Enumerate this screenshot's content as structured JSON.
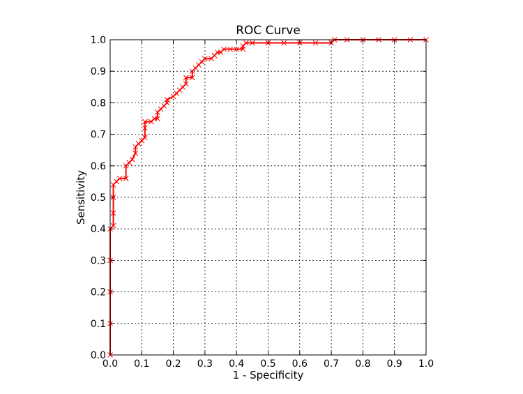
{
  "chart_data": {
    "type": "line",
    "title": "ROC Curve",
    "xlabel": "1 - Specificity",
    "ylabel": "Sensitivity",
    "xlim": [
      0.0,
      1.0
    ],
    "ylim": [
      0.0,
      1.0
    ],
    "xticks": [
      "0.0",
      "0.1",
      "0.2",
      "0.3",
      "0.4",
      "0.5",
      "0.6",
      "0.7",
      "0.8",
      "0.9",
      "1.0"
    ],
    "yticks": [
      "0.0",
      "0.1",
      "0.2",
      "0.3",
      "0.4",
      "0.5",
      "0.6",
      "0.7",
      "0.8",
      "0.9",
      "1.0"
    ],
    "grid": true,
    "legend": "none",
    "line_color": "#ff0000",
    "marker": "x",
    "series": [
      {
        "values": [
          [
            0.0,
            0.0
          ],
          [
            0.0,
            0.1
          ],
          [
            0.0,
            0.2
          ],
          [
            0.0,
            0.3
          ],
          [
            0.0,
            0.4
          ],
          [
            0.01,
            0.41
          ],
          [
            0.01,
            0.45
          ],
          [
            0.01,
            0.5
          ],
          [
            0.01,
            0.54
          ],
          [
            0.02,
            0.55
          ],
          [
            0.03,
            0.56
          ],
          [
            0.05,
            0.56
          ],
          [
            0.05,
            0.6
          ],
          [
            0.06,
            0.61
          ],
          [
            0.07,
            0.62
          ],
          [
            0.08,
            0.64
          ],
          [
            0.08,
            0.66
          ],
          [
            0.09,
            0.67
          ],
          [
            0.1,
            0.68
          ],
          [
            0.11,
            0.69
          ],
          [
            0.11,
            0.72
          ],
          [
            0.11,
            0.74
          ],
          [
            0.13,
            0.74
          ],
          [
            0.14,
            0.75
          ],
          [
            0.15,
            0.75
          ],
          [
            0.15,
            0.77
          ],
          [
            0.16,
            0.78
          ],
          [
            0.17,
            0.79
          ],
          [
            0.18,
            0.8
          ],
          [
            0.18,
            0.81
          ],
          [
            0.2,
            0.82
          ],
          [
            0.21,
            0.83
          ],
          [
            0.22,
            0.84
          ],
          [
            0.23,
            0.85
          ],
          [
            0.24,
            0.86
          ],
          [
            0.24,
            0.88
          ],
          [
            0.26,
            0.88
          ],
          [
            0.26,
            0.9
          ],
          [
            0.27,
            0.91
          ],
          [
            0.28,
            0.92
          ],
          [
            0.29,
            0.93
          ],
          [
            0.3,
            0.94
          ],
          [
            0.32,
            0.94
          ],
          [
            0.33,
            0.95
          ],
          [
            0.34,
            0.96
          ],
          [
            0.35,
            0.96
          ],
          [
            0.36,
            0.97
          ],
          [
            0.38,
            0.97
          ],
          [
            0.4,
            0.97
          ],
          [
            0.42,
            0.97
          ],
          [
            0.42,
            0.98
          ],
          [
            0.43,
            0.99
          ],
          [
            0.45,
            0.99
          ],
          [
            0.5,
            0.99
          ],
          [
            0.55,
            0.99
          ],
          [
            0.6,
            0.99
          ],
          [
            0.65,
            0.99
          ],
          [
            0.7,
            0.99
          ],
          [
            0.71,
            1.0
          ],
          [
            0.75,
            1.0
          ],
          [
            0.8,
            1.0
          ],
          [
            0.85,
            1.0
          ],
          [
            0.9,
            1.0
          ],
          [
            0.95,
            1.0
          ],
          [
            1.0,
            1.0
          ]
        ]
      }
    ]
  }
}
